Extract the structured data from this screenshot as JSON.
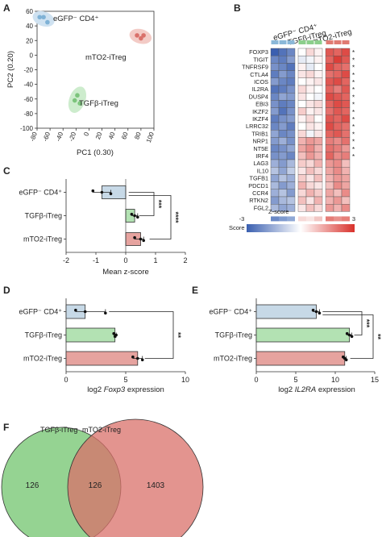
{
  "panels": {
    "A": "A",
    "B": "B",
    "C": "C",
    "D": "D",
    "E": "E",
    "F": "F"
  },
  "chart_data": [
    {
      "panel": "A",
      "type": "scatter",
      "xlabel": "PC1 (0.30)",
      "ylabel": "PC2 (0.20)",
      "xlim": [
        -80,
        100
      ],
      "ylim": [
        -100,
        60
      ],
      "xticks": [
        "-80",
        "-60",
        "-40",
        "-20",
        "0",
        "20",
        "40",
        "60",
        "80",
        "100"
      ],
      "yticks": [
        "60",
        "40",
        "20",
        "0",
        "-20",
        "-40",
        "-60",
        "-80",
        "-100"
      ],
      "groups": [
        {
          "label": "eGFP⁻ CD4⁺",
          "color": "#7fb2d6",
          "ellipse": "#cfe2f1",
          "x": [
            -76,
            -70,
            -64
          ],
          "y": [
            52,
            52,
            45
          ]
        },
        {
          "label": "mTO2-iTreg",
          "color": "#d9706a",
          "ellipse": "#f3cbc6",
          "x": [
            74,
            80,
            84
          ],
          "y": [
            27,
            23,
            27
          ]
        },
        {
          "label": "TGFβ-iTreg",
          "color": "#7cc47c",
          "ellipse": "#cdeccd",
          "x": [
            -18,
            -22,
            -14
          ],
          "y": [
            -55,
            -62,
            -66
          ]
        }
      ]
    },
    {
      "panel": "B",
      "type": "heatmap",
      "columns": [
        "eGFP⁻ CD4⁺",
        "TGFβ-iTreg",
        "mTO2-iTreg"
      ],
      "column_colors": [
        "#8bb8d8",
        "#8ccf8c",
        "#e07b73"
      ],
      "genes": [
        "FOXP3",
        "TIGIT",
        "TNFRSF9",
        "CTLA4",
        "ICOS",
        "IL2RA",
        "DUSP4",
        "EBI3",
        "IKZF2",
        "IKZF4",
        "LRRC32",
        "TRIB1",
        "NRP1",
        "NT5E",
        "IRF4",
        "LAG3",
        "IL10",
        "TGFB1",
        "PDCD1",
        "CCR4",
        "RTKN2",
        "FGL2"
      ],
      "stars": [
        "*",
        "*",
        "*",
        "*",
        "*",
        "*",
        "*",
        "*",
        "*",
        "*",
        "*",
        "*",
        "*",
        "*",
        "*",
        "",
        "",
        "",
        "",
        "",
        "",
        ""
      ],
      "values": [
        [
          -1.6,
          -1.4,
          -1.2,
          0.0,
          0.3,
          0.1,
          1.3,
          1.2,
          1.4
        ],
        [
          -1.2,
          -1.3,
          -1.0,
          -0.2,
          -0.1,
          0.1,
          1.2,
          1.5,
          1.3
        ],
        [
          -1.1,
          -1.2,
          -1.4,
          0.1,
          -0.2,
          0.0,
          1.4,
          1.2,
          1.1
        ],
        [
          -1.3,
          -1.0,
          -1.2,
          0.2,
          0.3,
          0.1,
          1.1,
          1.2,
          1.4
        ],
        [
          -1.0,
          -1.2,
          -1.3,
          0.0,
          0.1,
          0.2,
          1.3,
          1.4,
          1.2
        ],
        [
          -1.4,
          -1.3,
          -1.1,
          0.3,
          0.1,
          0.0,
          1.2,
          1.0,
          1.3
        ],
        [
          -1.2,
          -0.9,
          -1.0,
          0.2,
          0.0,
          -0.1,
          1.4,
          1.3,
          1.2
        ],
        [
          -1.1,
          -1.3,
          -1.2,
          0.0,
          0.2,
          0.3,
          1.2,
          1.4,
          1.3
        ],
        [
          -1.0,
          -1.4,
          -1.1,
          0.4,
          0.1,
          0.2,
          1.1,
          1.3,
          1.2
        ],
        [
          -1.3,
          -1.1,
          -1.0,
          0.1,
          0.3,
          0.0,
          1.3,
          1.2,
          1.4
        ],
        [
          -1.2,
          -1.0,
          -1.3,
          0.0,
          0.2,
          0.1,
          1.4,
          1.2,
          1.1
        ],
        [
          -0.9,
          -1.2,
          -1.1,
          0.3,
          -0.1,
          0.2,
          1.2,
          1.3,
          1.1
        ],
        [
          -1.0,
          -0.8,
          -1.1,
          0.6,
          0.8,
          0.7,
          1.0,
          0.9,
          1.1
        ],
        [
          -1.2,
          -1.1,
          -0.9,
          0.7,
          0.9,
          0.6,
          1.1,
          1.0,
          0.8
        ],
        [
          -1.1,
          -1.0,
          -1.2,
          0.5,
          0.8,
          0.6,
          1.2,
          0.9,
          1.0
        ],
        [
          -0.8,
          -1.0,
          -0.7,
          0.4,
          0.3,
          0.6,
          0.8,
          0.9,
          0.5
        ],
        [
          -0.6,
          -0.9,
          -0.5,
          0.2,
          0.5,
          0.3,
          0.7,
          0.9,
          0.6
        ],
        [
          -0.9,
          -0.6,
          -0.8,
          0.4,
          0.2,
          0.5,
          0.6,
          0.8,
          0.7
        ],
        [
          -0.7,
          -1.0,
          -0.8,
          0.6,
          0.3,
          0.2,
          0.5,
          0.9,
          0.7
        ],
        [
          -0.8,
          -0.6,
          -1.0,
          0.3,
          0.6,
          0.4,
          0.7,
          0.5,
          0.9
        ],
        [
          -1.0,
          -0.7,
          -0.6,
          0.5,
          0.2,
          0.6,
          0.6,
          0.8,
          0.5
        ],
        [
          -0.7,
          -0.9,
          -0.8,
          0.2,
          0.5,
          0.3,
          0.8,
          0.6,
          0.9
        ]
      ],
      "zscore_label": "Z-score",
      "score_label": "Score",
      "scale_min": "-3",
      "scale_max": "3"
    },
    {
      "panel": "C",
      "type": "bar",
      "orientation": "horizontal",
      "categories": [
        "eGFP⁻ CD4⁺",
        "TGFβ-iTreg",
        "mTO2-iTreg"
      ],
      "values": [
        -0.8,
        0.3,
        0.5
      ],
      "points": [
        [
          -1.1,
          -0.8,
          -0.5
        ],
        [
          0.2,
          0.3,
          0.4
        ],
        [
          0.3,
          0.5,
          0.6
        ]
      ],
      "colors": [
        "#c7d9e7",
        "#b3e2b3",
        "#e6a39f"
      ],
      "xlim": [
        -2,
        2
      ],
      "xticks": [
        "-2",
        "-1",
        "0",
        "1",
        "2"
      ],
      "xlabel": "Mean z-score",
      "significance": [
        "***",
        "****"
      ]
    },
    {
      "panel": "D",
      "type": "bar",
      "orientation": "horizontal",
      "categories": [
        "eGFP⁻ CD4⁺",
        "TGFβ-iTreg",
        "mTO2-iTreg"
      ],
      "values": [
        1.6,
        4.1,
        6.0
      ],
      "points": [
        [
          0.8,
          1.6,
          3.3
        ],
        [
          4.0,
          4.2,
          4.1
        ],
        [
          5.6,
          6.0,
          6.4
        ]
      ],
      "colors": [
        "#c7d9e7",
        "#b3e2b3",
        "#e6a39f"
      ],
      "xlim": [
        0,
        10
      ],
      "xticks": [
        "0",
        "5",
        "10"
      ],
      "xlabel_parts": [
        "log2 ",
        "Foxp3",
        " expression"
      ],
      "significance": [
        "**"
      ]
    },
    {
      "panel": "E",
      "type": "bar",
      "orientation": "horizontal",
      "categories": [
        "eGFP⁻ CD4⁺",
        "TGFβ-iTreg",
        "mTO2-iTreg"
      ],
      "values": [
        7.6,
        11.8,
        11.2
      ],
      "points": [
        [
          7.2,
          7.6,
          8.0
        ],
        [
          11.5,
          11.8,
          12.1
        ],
        [
          11.0,
          11.2,
          11.4
        ]
      ],
      "colors": [
        "#c7d9e7",
        "#b3e2b3",
        "#e6a39f"
      ],
      "xlim": [
        0,
        15
      ],
      "xticks": [
        "0",
        "5",
        "10",
        "15"
      ],
      "xlabel_parts": [
        "log2 ",
        "IL2RA",
        " expression"
      ],
      "significance": [
        "***",
        "**"
      ]
    },
    {
      "panel": "F",
      "type": "venn",
      "sets": [
        {
          "label": "TGFβ-iTreg",
          "color": "#8fd18c"
        },
        {
          "label": "mTO2-iTreg",
          "color": "#d9706a"
        }
      ],
      "counts": [
        "126",
        "126",
        "1403"
      ]
    }
  ]
}
